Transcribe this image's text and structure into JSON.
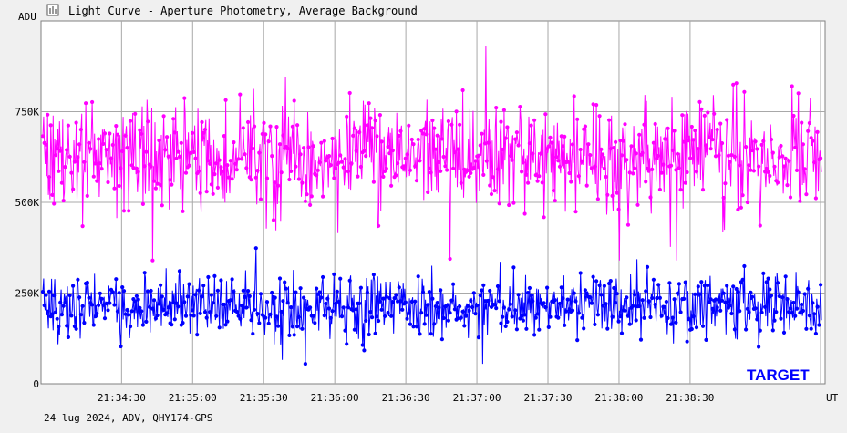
{
  "window": {
    "title": "Light Curve - Aperture Photometry, Average Background",
    "icon": "chart-icon"
  },
  "footer": {
    "info": "24 lug 2024, ADV, QHY174-GPS"
  },
  "chart_data": {
    "type": "line",
    "ylabel": "ADU",
    "xlabel": "UT",
    "ylim": [
      0,
      1000000
    ],
    "y_ticks": [
      {
        "value": 0,
        "label": "0"
      },
      {
        "value": 250000,
        "label": "250K"
      },
      {
        "value": 500000,
        "label": "500K"
      },
      {
        "value": 750000,
        "label": "750K"
      }
    ],
    "xlim": [
      "21:33:56",
      "21:39:27"
    ],
    "x_ticks": [
      "21:34:30",
      "21:35:00",
      "21:35:30",
      "21:36:00",
      "21:36:30",
      "21:37:00",
      "21:37:30",
      "21:38:00",
      "21:38:30"
    ],
    "grid": true,
    "annotation": "TARGET",
    "series": [
      {
        "color": "#ff00ff",
        "mean": 630000,
        "spread": 95000,
        "min": 340000,
        "max": 960000,
        "summary": "about 1000 points, mostly 480K-800K"
      },
      {
        "color": "#0000ff",
        "mean": 215000,
        "spread": 55000,
        "min": 55000,
        "max": 375000,
        "summary": "about 1000 points, mostly 120K-320K"
      }
    ]
  }
}
